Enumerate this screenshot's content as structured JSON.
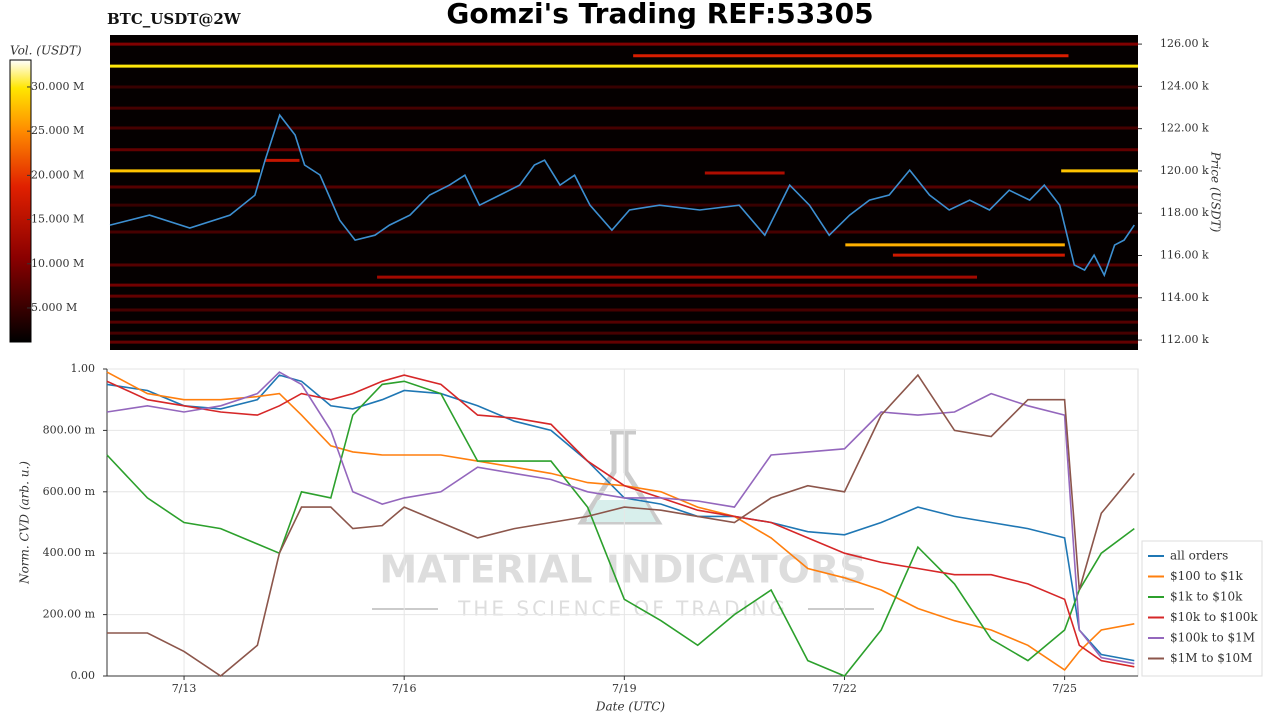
{
  "page": {
    "symbol": "BTC_USDT@2W",
    "title": "Gomzi's Trading REF:53305"
  },
  "watermark": {
    "brand": "MATERIAL INDICATORS",
    "tagline": "THE SCIENCE OF TRADING"
  },
  "chart_data": [
    {
      "type": "heatmap",
      "ylabel": "Price (USDT)",
      "xlim": [
        11.95,
        26.0
      ],
      "ylim": [
        111530,
        126430
      ],
      "yticks": [
        {
          "value": 112000,
          "label": "112.00 k"
        },
        {
          "value": 114000,
          "label": "114.00 k"
        },
        {
          "value": 116000,
          "label": "116.00 k"
        },
        {
          "value": 118000,
          "label": "118.00 k"
        },
        {
          "value": 120000,
          "label": "120.00 k"
        },
        {
          "value": 122000,
          "label": "122.00 k"
        },
        {
          "value": 124000,
          "label": "124.00 k"
        },
        {
          "value": 126000,
          "label": "126.00 k"
        }
      ],
      "clabel": "Vol. (USDT)",
      "clim": [
        1150000,
        33050000
      ],
      "cticks": [
        {
          "value": 5000000,
          "label": "5.000 M"
        },
        {
          "value": 10000000,
          "label": "10.000 M"
        },
        {
          "value": 15000000,
          "label": "15.000 M"
        },
        {
          "value": 20000000,
          "label": "20.000 M"
        },
        {
          "value": 25000000,
          "label": "25.000 M"
        },
        {
          "value": 30000000,
          "label": "30.000 M"
        }
      ],
      "levels": {
        "price": [
          126000,
          123970,
          122970,
          122030,
          121000,
          119240,
          118380,
          117110,
          115550,
          114600,
          114080,
          113420,
          112850,
          112330,
          111900,
          124960,
          125450,
          120000,
          120000,
          120500,
          116500,
          116020,
          114980,
          119900
        ],
        "volume": [
          10000000,
          5000000,
          6000000,
          6000000,
          8000000,
          7000000,
          5000000,
          6000000,
          7000000,
          9000000,
          8000000,
          6000000,
          7000000,
          6000000,
          8000000,
          30000000,
          18000000,
          28000000,
          28000000,
          16000000,
          27000000,
          17000000,
          13000000,
          14000000
        ],
        "x0": [
          11.95,
          11.95,
          11.95,
          11.95,
          11.95,
          11.95,
          11.95,
          11.95,
          11.95,
          11.95,
          11.95,
          11.95,
          11.95,
          11.95,
          11.95,
          11.95,
          19.1,
          11.95,
          24.95,
          14.07,
          22.0,
          22.65,
          15.6,
          20.08
        ],
        "x1": [
          26.0,
          26.0,
          26.0,
          26.0,
          26.0,
          26.0,
          26.0,
          26.0,
          26.0,
          26.0,
          26.0,
          26.0,
          26.0,
          26.0,
          26.0,
          26.0,
          25.05,
          14.0,
          26.0,
          14.54,
          25.0,
          25.0,
          23.8,
          21.17
        ]
      },
      "series": [
        {
          "color": "#3d8fd1",
          "x": [
            11.95,
            12.49,
            13.04,
            13.59,
            13.93,
            14.07,
            14.27,
            14.48,
            14.61,
            14.82,
            15.09,
            15.3,
            15.57,
            15.77,
            16.05,
            16.32,
            16.59,
            16.8,
            17.0,
            17.28,
            17.55,
            17.75,
            17.89,
            18.1,
            18.3,
            18.51,
            18.81,
            19.05,
            19.46,
            20.01,
            20.55,
            20.9,
            21.24,
            21.51,
            21.78,
            22.06,
            22.33,
            22.6,
            22.88,
            23.15,
            23.42,
            23.7,
            23.97,
            24.24,
            24.52,
            24.72,
            24.93,
            25.13,
            25.27,
            25.4,
            25.54,
            25.68,
            25.81,
            25.95
          ],
          "values": [
            117440,
            117910,
            117300,
            117910,
            118850,
            120510,
            122640,
            121700,
            120280,
            119810,
            117670,
            116730,
            116960,
            117440,
            117910,
            118860,
            119330,
            119800,
            118380,
            118860,
            119330,
            120280,
            120510,
            119330,
            119800,
            118380,
            117200,
            118150,
            118380,
            118150,
            118380,
            116960,
            119330,
            118380,
            116960,
            117910,
            118620,
            118860,
            120040,
            118860,
            118150,
            118620,
            118150,
            119090,
            118620,
            119330,
            118380,
            115550,
            115310,
            116020,
            115070,
            116490,
            116730,
            117440
          ]
        }
      ]
    },
    {
      "type": "line",
      "xlabel": "Date (UTC)",
      "ylabel": "Norm. CVD (arb. u.)",
      "grid": true,
      "legend": "lower right",
      "xlim": [
        11.95,
        26.0
      ],
      "ylim": [
        0,
        1
      ],
      "xticks": [
        {
          "value": 13,
          "label": "7/13"
        },
        {
          "value": 16,
          "label": "7/16"
        },
        {
          "value": 19,
          "label": "7/19"
        },
        {
          "value": 22,
          "label": "7/22"
        },
        {
          "value": 25,
          "label": "7/25"
        }
      ],
      "yticks": [
        {
          "value": 0,
          "label": "0.00"
        },
        {
          "value": 0.2,
          "label": "200.00 m"
        },
        {
          "value": 0.4,
          "label": "400.00 m"
        },
        {
          "value": 0.6,
          "label": "600.00 m"
        },
        {
          "value": 0.8,
          "label": "800.00 m"
        },
        {
          "value": 1,
          "label": "1.00"
        }
      ],
      "x": [
        11.95,
        12.5,
        13,
        13.5,
        14,
        14.3,
        14.6,
        15,
        15.3,
        15.7,
        16,
        16.5,
        17,
        17.5,
        18,
        18.5,
        19,
        19.5,
        20,
        20.5,
        21,
        21.5,
        22,
        22.5,
        23,
        23.5,
        24,
        24.5,
        25,
        25.2,
        25.5,
        25.95
      ],
      "series": [
        {
          "name": "all orders",
          "color": "#1f77b4",
          "values": [
            0.95,
            0.93,
            0.88,
            0.87,
            0.9,
            0.98,
            0.96,
            0.88,
            0.87,
            0.9,
            0.93,
            0.92,
            0.88,
            0.83,
            0.8,
            0.7,
            0.58,
            0.56,
            0.52,
            0.52,
            0.5,
            0.47,
            0.46,
            0.5,
            0.55,
            0.52,
            0.5,
            0.48,
            0.45,
            0.15,
            0.07,
            0.05
          ]
        },
        {
          "name": "$100 to $1k",
          "color": "#ff7f0e",
          "values": [
            0.99,
            0.92,
            0.9,
            0.9,
            0.91,
            0.92,
            0.85,
            0.75,
            0.73,
            0.72,
            0.72,
            0.72,
            0.7,
            0.68,
            0.66,
            0.63,
            0.62,
            0.6,
            0.55,
            0.52,
            0.45,
            0.35,
            0.32,
            0.28,
            0.22,
            0.18,
            0.15,
            0.1,
            0.02,
            0.08,
            0.15,
            0.17
          ]
        },
        {
          "name": "$1k to $10k",
          "color": "#2ca02c",
          "values": [
            0.72,
            0.58,
            0.5,
            0.48,
            0.43,
            0.4,
            0.6,
            0.58,
            0.85,
            0.95,
            0.96,
            0.92,
            0.7,
            0.7,
            0.7,
            0.55,
            0.25,
            0.18,
            0.1,
            0.2,
            0.28,
            0.05,
            0.0,
            0.15,
            0.42,
            0.3,
            0.12,
            0.05,
            0.15,
            0.28,
            0.4,
            0.48
          ]
        },
        {
          "name": "$10k to $100k",
          "color": "#d62728",
          "values": [
            0.96,
            0.9,
            0.88,
            0.86,
            0.85,
            0.88,
            0.92,
            0.9,
            0.92,
            0.96,
            0.98,
            0.95,
            0.85,
            0.84,
            0.82,
            0.7,
            0.62,
            0.58,
            0.54,
            0.52,
            0.5,
            0.45,
            0.4,
            0.37,
            0.35,
            0.33,
            0.33,
            0.3,
            0.25,
            0.1,
            0.05,
            0.03
          ]
        },
        {
          "name": "$100k to $1M",
          "color": "#9467bd",
          "values": [
            0.86,
            0.88,
            0.86,
            0.88,
            0.92,
            0.99,
            0.95,
            0.8,
            0.6,
            0.56,
            0.58,
            0.6,
            0.68,
            0.66,
            0.64,
            0.6,
            0.58,
            0.58,
            0.57,
            0.55,
            0.72,
            0.73,
            0.74,
            0.86,
            0.85,
            0.86,
            0.92,
            0.88,
            0.85,
            0.15,
            0.06,
            0.04
          ]
        },
        {
          "name": "$1M to $10M",
          "color": "#8c564b",
          "values": [
            0.14,
            0.14,
            0.08,
            0.0,
            0.1,
            0.4,
            0.55,
            0.55,
            0.48,
            0.49,
            0.55,
            0.5,
            0.45,
            0.48,
            0.5,
            0.52,
            0.55,
            0.54,
            0.52,
            0.5,
            0.58,
            0.62,
            0.6,
            0.85,
            0.98,
            0.8,
            0.78,
            0.9,
            0.9,
            0.28,
            0.53,
            0.66
          ]
        }
      ]
    }
  ]
}
